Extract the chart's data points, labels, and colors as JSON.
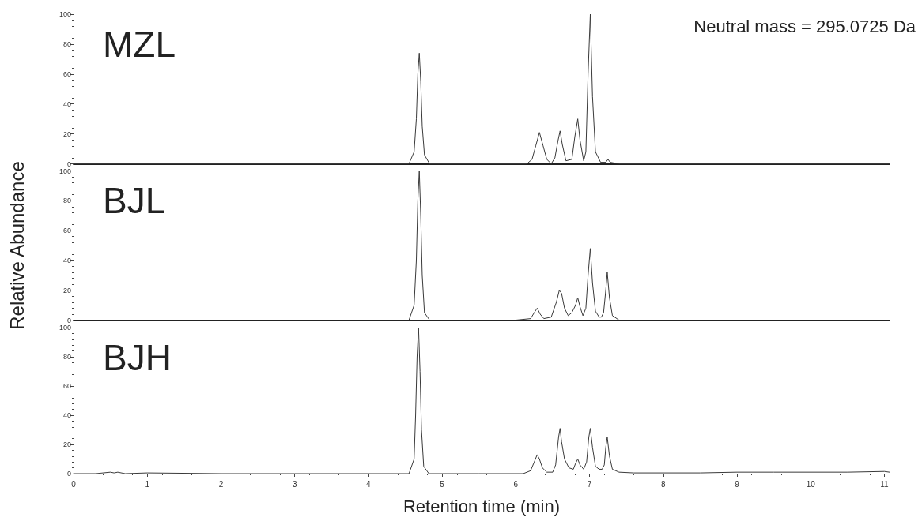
{
  "chart_data": [
    {
      "type": "line",
      "title": "MZL",
      "annotations": [
        "Neutral mass = 295.0725 Da"
      ],
      "tick_labels": "y",
      "color": "#3a3a3a",
      "xlim": [
        0,
        11.07
      ],
      "xticks": [
        0,
        1,
        2,
        3,
        4,
        5,
        6,
        7,
        8,
        9,
        10,
        11
      ],
      "ylim": [
        0,
        100
      ],
      "yticks": [
        0,
        20,
        40,
        60,
        80,
        100
      ],
      "x": [
        0,
        4.55,
        4.62,
        4.65,
        4.67,
        4.69,
        4.71,
        4.73,
        4.76,
        4.83,
        6.15,
        6.22,
        6.27,
        6.32,
        6.37,
        6.42,
        6.48,
        6.53,
        6.57,
        6.6,
        6.63,
        6.68,
        6.76,
        6.8,
        6.84,
        6.87,
        6.92,
        6.95,
        6.98,
        7.01,
        7.04,
        7.08,
        7.15,
        7.22,
        7.25,
        7.28,
        7.4,
        11.07
      ],
      "values": [
        0,
        0,
        8,
        30,
        60,
        74,
        55,
        25,
        6,
        0,
        0,
        3,
        12,
        21,
        12,
        3,
        0,
        4,
        15,
        22,
        13,
        2,
        3,
        18,
        30,
        16,
        2,
        8,
        60,
        100,
        45,
        8,
        1,
        1,
        3,
        1,
        0,
        0
      ]
    },
    {
      "type": "line",
      "title": "BJL",
      "ylabel": "Relative Abundance",
      "tick_labels": "y",
      "color": "#3a3a3a",
      "xlim": [
        0,
        11.07
      ],
      "xticks": [
        0,
        1,
        2,
        3,
        4,
        5,
        6,
        7,
        8,
        9,
        10,
        11
      ],
      "ylim": [
        0,
        100
      ],
      "yticks": [
        0,
        20,
        40,
        60,
        80,
        100
      ],
      "x": [
        0,
        4.55,
        4.62,
        4.65,
        4.67,
        4.69,
        4.71,
        4.73,
        4.76,
        4.83,
        6.0,
        6.2,
        6.25,
        6.29,
        6.33,
        6.38,
        6.48,
        6.55,
        6.59,
        6.62,
        6.66,
        6.71,
        6.76,
        6.81,
        6.84,
        6.87,
        6.91,
        6.95,
        6.98,
        7.01,
        7.04,
        7.08,
        7.13,
        7.16,
        7.19,
        7.22,
        7.24,
        7.27,
        7.31,
        7.4,
        11.07
      ],
      "values": [
        0,
        0,
        10,
        40,
        80,
        100,
        70,
        30,
        5,
        0,
        0,
        1,
        5,
        8,
        4,
        1,
        2,
        12,
        20,
        18,
        8,
        3,
        5,
        10,
        15,
        9,
        3,
        8,
        30,
        48,
        25,
        6,
        2,
        2,
        5,
        20,
        32,
        15,
        3,
        0,
        0
      ]
    },
    {
      "type": "line",
      "title": "BJH",
      "xlabel": "Retention time (min)",
      "color": "#3a3a3a",
      "xlim": [
        0,
        11.07
      ],
      "xticks": [
        0,
        1,
        2,
        3,
        4,
        5,
        6,
        7,
        8,
        9,
        10,
        11
      ],
      "ylim": [
        0,
        100
      ],
      "yticks": [
        0,
        20,
        40,
        60,
        80,
        100
      ],
      "x": [
        0,
        0.3,
        0.5,
        0.55,
        0.6,
        0.7,
        1.0,
        2.0,
        3.0,
        4.0,
        4.55,
        4.62,
        4.64,
        4.66,
        4.68,
        4.7,
        4.72,
        4.75,
        4.82,
        5.5,
        6.1,
        6.2,
        6.25,
        6.29,
        6.32,
        6.36,
        6.42,
        6.5,
        6.54,
        6.58,
        6.6,
        6.62,
        6.66,
        6.72,
        6.78,
        6.81,
        6.84,
        6.87,
        6.92,
        6.96,
        6.99,
        7.01,
        7.04,
        7.08,
        7.13,
        7.17,
        7.2,
        7.22,
        7.24,
        7.27,
        7.31,
        7.4,
        7.6,
        8,
        8.5,
        9,
        9.5,
        10,
        10.5,
        11,
        11.07
      ],
      "values": [
        0,
        0,
        1,
        0.5,
        1,
        0,
        0.5,
        0,
        0,
        0,
        0,
        10,
        40,
        80,
        100,
        70,
        30,
        5,
        0,
        0,
        0,
        2,
        8,
        13,
        10,
        4,
        1,
        1,
        6,
        25,
        31,
        22,
        10,
        4,
        3,
        7,
        10,
        6,
        3,
        8,
        25,
        31,
        18,
        5,
        3,
        3,
        6,
        18,
        25,
        12,
        3,
        1,
        0.5,
        0.5,
        0.5,
        1,
        1,
        1,
        1,
        1.5,
        1
      ]
    }
  ]
}
